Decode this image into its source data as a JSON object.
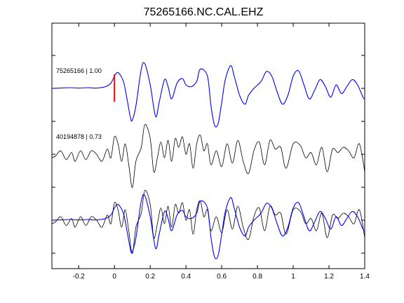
{
  "chart_data": {
    "type": "line",
    "title": "75265166.NC.CAL.EHZ",
    "xlabel": "",
    "ylabel": "",
    "xlim": [
      -0.35,
      1.4
    ],
    "x_ticks": [
      -0.2,
      0,
      0.2,
      0.4,
      0.6,
      0.8,
      1,
      1.2,
      1.4
    ],
    "x_tick_labels": [
      "-0.2",
      "0",
      "0.2",
      "0.4",
      "0.6",
      "0.8",
      "1",
      "1.2",
      "1.4"
    ],
    "grid": false,
    "legend": "none",
    "pick_marker": {
      "x": 0,
      "color": "#ff0000"
    },
    "traces": [
      {
        "label": "75265166 | 1.00",
        "color": "#0000ff",
        "offset": 0,
        "x": [
          -0.35,
          -0.3,
          -0.25,
          -0.2,
          -0.15,
          -0.1,
          -0.05,
          -0.02,
          0,
          0.02,
          0.05,
          0.07,
          0.09,
          0.1,
          0.12,
          0.15,
          0.17,
          0.2,
          0.23,
          0.25,
          0.28,
          0.3,
          0.32,
          0.35,
          0.38,
          0.4,
          0.43,
          0.46,
          0.48,
          0.52,
          0.54,
          0.56,
          0.58,
          0.6,
          0.62,
          0.65,
          0.67,
          0.7,
          0.73,
          0.75,
          0.78,
          0.82,
          0.85,
          0.88,
          0.91,
          0.94,
          0.97,
          1.0,
          1.03,
          1.06,
          1.09,
          1.12,
          1.15,
          1.18,
          1.21,
          1.24,
          1.27,
          1.3,
          1.33,
          1.36,
          1.39,
          1.4
        ],
        "y": [
          0,
          0.01,
          0.02,
          0.01,
          0.02,
          0.01,
          0.05,
          0.15,
          0.35,
          0.45,
          0.2,
          -0.3,
          -0.85,
          -0.9,
          -0.5,
          0.55,
          0.7,
          0.1,
          -0.8,
          -0.4,
          0.25,
          0.05,
          -0.3,
          0.15,
          0.28,
          0.1,
          0.05,
          0.2,
          0.55,
          0.35,
          -0.5,
          -1.05,
          -1.0,
          -0.4,
          0.25,
          0.65,
          0.35,
          -0.2,
          -0.45,
          -0.2,
          0.0,
          0.2,
          0.48,
          0.35,
          -0.1,
          -0.45,
          -0.2,
          0.35,
          0.5,
          0.1,
          -0.3,
          -0.05,
          0.25,
          0.05,
          -0.25,
          0.1,
          -0.15,
          0.05,
          0.25,
          0.1,
          -0.25,
          -0.3
        ]
      },
      {
        "label": "40194878 | 0.73",
        "color": "#000000",
        "offset": -1,
        "x": [
          -0.35,
          -0.33,
          -0.3,
          -0.27,
          -0.24,
          -0.22,
          -0.19,
          -0.16,
          -0.13,
          -0.1,
          -0.07,
          -0.04,
          -0.02,
          0,
          0.02,
          0.04,
          0.06,
          0.08,
          0.1,
          0.12,
          0.15,
          0.17,
          0.2,
          0.22,
          0.24,
          0.26,
          0.28,
          0.3,
          0.32,
          0.34,
          0.36,
          0.38,
          0.4,
          0.42,
          0.44,
          0.46,
          0.48,
          0.5,
          0.52,
          0.54,
          0.57,
          0.6,
          0.63,
          0.66,
          0.69,
          0.72,
          0.75,
          0.78,
          0.81,
          0.84,
          0.87,
          0.9,
          0.93,
          0.96,
          1.0,
          1.04,
          1.07,
          1.1,
          1.13,
          1.16,
          1.19,
          1.22,
          1.25,
          1.28,
          1.31,
          1.34,
          1.37,
          1.4
        ],
        "y": [
          -0.1,
          -0.05,
          0.1,
          -0.15,
          0.05,
          -0.2,
          0.1,
          -0.15,
          0.1,
          0.0,
          -0.2,
          0.15,
          -0.1,
          0.5,
          0.3,
          -0.2,
          0.3,
          -0.3,
          -0.95,
          -0.2,
          0.2,
          0.85,
          0.45,
          -0.5,
          -0.1,
          0.35,
          -0.1,
          0.4,
          -0.2,
          0.45,
          0.2,
          0.5,
          0.0,
          0.3,
          -0.4,
          0.3,
          0.55,
          0.1,
          0.3,
          -0.3,
          0.1,
          -0.35,
          0.3,
          -0.25,
          0.4,
          -0.2,
          -0.55,
          0.1,
          0.35,
          -0.3,
          0.4,
          0.15,
          0.2,
          -0.4,
          0.3,
          0.25,
          -0.1,
          0.05,
          -0.3,
          0.2,
          -0.5,
          0.15,
          0.05,
          0.2,
          0.1,
          -0.1,
          0.3,
          -0.5
        ]
      },
      {
        "label": "",
        "color": "#000000",
        "offset": -2,
        "x": [
          -0.35,
          -0.33,
          -0.3,
          -0.27,
          -0.24,
          -0.22,
          -0.19,
          -0.16,
          -0.13,
          -0.1,
          -0.07,
          -0.04,
          -0.02,
          0,
          0.02,
          0.04,
          0.06,
          0.08,
          0.1,
          0.12,
          0.15,
          0.17,
          0.2,
          0.22,
          0.24,
          0.26,
          0.28,
          0.3,
          0.32,
          0.34,
          0.36,
          0.38,
          0.4,
          0.42,
          0.44,
          0.46,
          0.48,
          0.5,
          0.52,
          0.54,
          0.57,
          0.6,
          0.63,
          0.66,
          0.69,
          0.72,
          0.75,
          0.78,
          0.81,
          0.84,
          0.87,
          0.9,
          0.93,
          0.96,
          1.0,
          1.04,
          1.07,
          1.1,
          1.13,
          1.16,
          1.19,
          1.22,
          1.25,
          1.28,
          1.31,
          1.34,
          1.37,
          1.4
        ],
        "y": [
          -0.1,
          -0.05,
          0.1,
          -0.15,
          0.05,
          -0.2,
          0.1,
          -0.15,
          0.1,
          0.0,
          -0.2,
          0.15,
          -0.1,
          0.5,
          0.3,
          -0.2,
          0.3,
          -0.3,
          -0.95,
          -0.2,
          0.2,
          0.85,
          0.45,
          -0.5,
          -0.1,
          0.35,
          -0.1,
          0.4,
          -0.2,
          0.45,
          0.2,
          0.5,
          0.0,
          0.3,
          -0.4,
          0.3,
          0.55,
          0.1,
          0.3,
          -0.3,
          0.1,
          -0.35,
          0.3,
          -0.25,
          0.4,
          -0.2,
          -0.55,
          0.1,
          0.35,
          -0.3,
          0.4,
          0.15,
          0.2,
          -0.4,
          0.3,
          0.25,
          -0.1,
          0.05,
          -0.3,
          0.2,
          -0.5,
          0.15,
          0.05,
          0.2,
          0.1,
          -0.1,
          0.3,
          -0.5
        ]
      },
      {
        "label": "",
        "color": "#0000ff",
        "offset": -2,
        "x": [
          -0.35,
          -0.3,
          -0.25,
          -0.2,
          -0.15,
          -0.1,
          -0.05,
          -0.02,
          0,
          0.02,
          0.05,
          0.07,
          0.09,
          0.1,
          0.12,
          0.15,
          0.17,
          0.2,
          0.23,
          0.25,
          0.28,
          0.3,
          0.32,
          0.35,
          0.38,
          0.4,
          0.43,
          0.46,
          0.48,
          0.52,
          0.54,
          0.56,
          0.58,
          0.6,
          0.62,
          0.65,
          0.67,
          0.7,
          0.73,
          0.75,
          0.78,
          0.82,
          0.85,
          0.88,
          0.91,
          0.94,
          0.97,
          1.0,
          1.03,
          1.06,
          1.09,
          1.12,
          1.15,
          1.18,
          1.21,
          1.24,
          1.27,
          1.3,
          1.33,
          1.36,
          1.39,
          1.4
        ],
        "y": [
          0,
          0.01,
          0.02,
          0.01,
          0.02,
          0.01,
          0.05,
          0.15,
          0.35,
          0.45,
          0.2,
          -0.3,
          -0.85,
          -0.9,
          -0.5,
          0.55,
          0.7,
          0.1,
          -0.8,
          -0.4,
          0.25,
          0.05,
          -0.3,
          0.15,
          0.28,
          0.1,
          0.05,
          0.2,
          0.55,
          0.35,
          -0.5,
          -1.05,
          -1.0,
          -0.4,
          0.25,
          0.65,
          0.35,
          -0.2,
          -0.45,
          -0.2,
          0.0,
          0.2,
          0.48,
          0.35,
          -0.1,
          -0.45,
          -0.2,
          0.35,
          0.5,
          0.1,
          -0.3,
          -0.05,
          0.25,
          0.05,
          -0.25,
          0.1,
          -0.15,
          0.05,
          0.25,
          0.1,
          -0.25,
          -0.3
        ]
      }
    ]
  }
}
